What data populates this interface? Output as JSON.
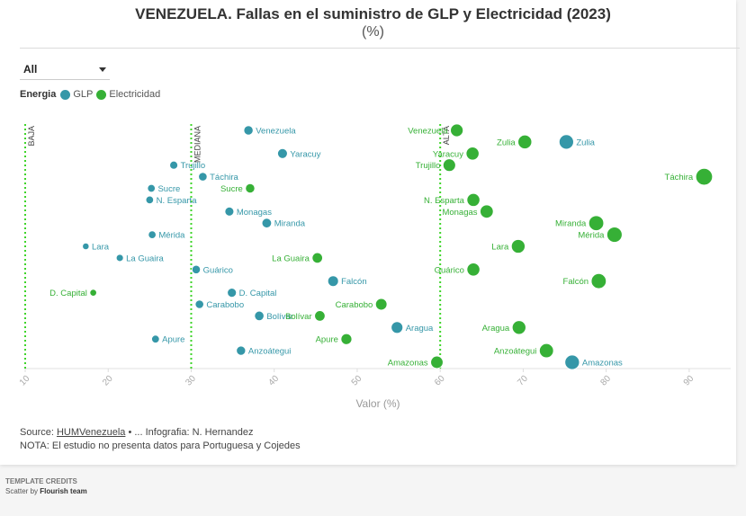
{
  "header": {
    "title": "VENEZUELA. Fallas en el suministro de GLP y Electricidad (2023)",
    "subtitle": "(%)"
  },
  "filter": {
    "selected": "All"
  },
  "legend": {
    "label": "Energia",
    "items": [
      {
        "name": "GLP",
        "color": "#3597a8"
      },
      {
        "name": "Electricidad",
        "color": "#36b036"
      }
    ]
  },
  "footer": {
    "source_prefix": "Source: ",
    "source_link": "HUMVenezuela",
    "source_suffix": " • ... Infografia: N. Hernandez",
    "note": "NOTA: El estudio no presenta datos para Portuguesa y Cojedes"
  },
  "credits": {
    "title": "TEMPLATE CREDITS",
    "by_prefix": "Scatter by ",
    "by_name": "Flourish team"
  },
  "chart_data": {
    "type": "scatter",
    "title": "VENEZUELA. Fallas en el suministro de GLP y Electricidad (2023)",
    "subtitle": "(%)",
    "xlabel": "Valor (%)",
    "ylabel": "",
    "xlim": [
      10,
      95
    ],
    "x_ticks": [
      10,
      20,
      30,
      40,
      50,
      60,
      70,
      80,
      90
    ],
    "grid": false,
    "legend_position": "top-left",
    "point_size_by": "value",
    "categories": [
      "Venezuela",
      "Zulia",
      "Yaracuy",
      "Trujillo",
      "Táchira",
      "Sucre",
      "N. Esparta",
      "Monagas",
      "Miranda",
      "Mérida",
      "Lara",
      "La Guaira",
      "Guárico",
      "Falcón",
      "D. Capital",
      "Carabobo",
      "Bolívar",
      "Aragua",
      "Apure",
      "Anzoátegui",
      "Amazonas"
    ],
    "reference_lines": [
      {
        "label": "BAJA",
        "x": 10
      },
      {
        "label": "MEDIANA",
        "x": 30
      },
      {
        "label": "ALTA",
        "x": 60
      }
    ],
    "series": [
      {
        "name": "GLP",
        "color": "#3597a8",
        "label_side": "right",
        "values": [
          36.9,
          75.2,
          41.0,
          27.9,
          31.4,
          25.2,
          25.0,
          34.6,
          39.1,
          25.3,
          17.3,
          21.4,
          30.6,
          47.1,
          34.9,
          31.0,
          38.2,
          54.8,
          25.7,
          36.0,
          75.9
        ]
      },
      {
        "name": "Electricidad",
        "color": "#36b036",
        "label_side": "left",
        "values": [
          62.0,
          70.2,
          63.9,
          61.1,
          91.8,
          37.1,
          64.0,
          65.6,
          78.8,
          81.0,
          69.4,
          45.2,
          64.0,
          79.1,
          18.2,
          52.9,
          45.5,
          69.5,
          48.7,
          72.8,
          59.6
        ]
      }
    ]
  }
}
